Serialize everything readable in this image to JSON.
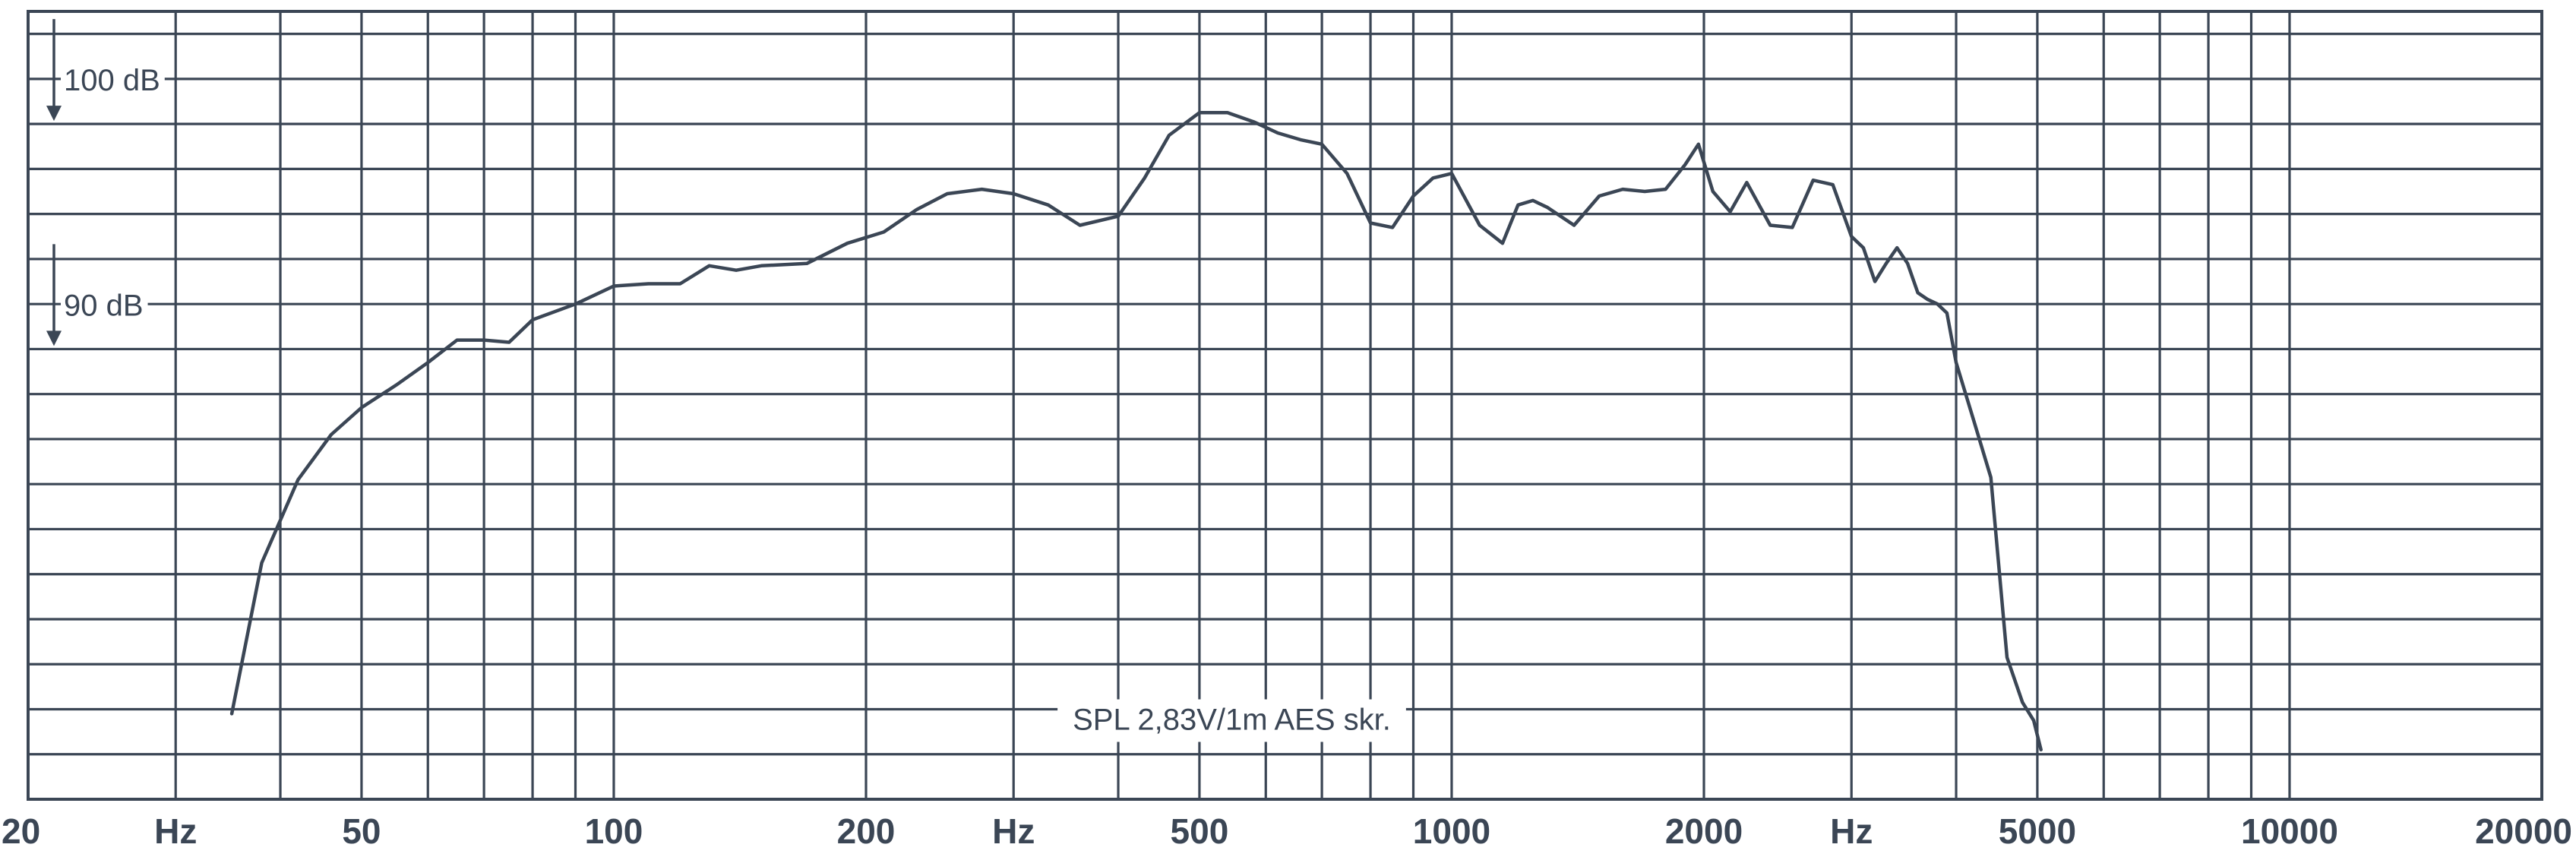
{
  "chart_data": {
    "type": "line",
    "x_scale": "log",
    "x_range": [
      20,
      20000
    ],
    "y_unit": "dB",
    "y_range": [
      70,
      105
    ],
    "y_gridlines_per_10dB": 5,
    "grid": true,
    "x_tick_labels": [
      {
        "value": 20,
        "label": "20"
      },
      {
        "value": 30,
        "label": "Hz"
      },
      {
        "value": 50,
        "label": "50"
      },
      {
        "value": 100,
        "label": "100"
      },
      {
        "value": 200,
        "label": "200"
      },
      {
        "value": 300,
        "label": "Hz"
      },
      {
        "value": 500,
        "label": "500"
      },
      {
        "value": 1000,
        "label": "1000"
      },
      {
        "value": 2000,
        "label": "2000"
      },
      {
        "value": 3000,
        "label": "Hz"
      },
      {
        "value": 5000,
        "label": "5000"
      },
      {
        "value": 10000,
        "label": "10000"
      },
      {
        "value": 20000,
        "label": "20000"
      }
    ],
    "reference_labels": [
      {
        "value": 100,
        "label": "100 dB"
      },
      {
        "value": 90,
        "label": "90 dB"
      }
    ],
    "annotation": "SPL  2,83V/1m   AES  skr.",
    "series": [
      {
        "x": [
          35,
          38,
          42,
          46,
          50,
          55,
          60,
          65,
          70,
          75,
          80,
          90,
          100,
          110,
          120,
          130,
          140,
          150,
          170,
          190,
          210,
          230,
          250,
          275,
          300,
          330,
          360,
          400,
          430,
          460,
          500,
          540,
          580,
          620,
          660,
          700,
          750,
          800,
          850,
          900,
          950,
          1000,
          1080,
          1150,
          1200,
          1250,
          1300,
          1400,
          1500,
          1600,
          1700,
          1800,
          1900,
          1970,
          2050,
          2150,
          2250,
          2400,
          2550,
          2700,
          2850,
          3000,
          3100,
          3200,
          3300,
          3400,
          3500,
          3600,
          3700,
          3800,
          3900,
          4000,
          4200,
          4400,
          4600,
          4800,
          4950,
          5050
        ],
        "y": [
          73.8,
          80.5,
          84.2,
          86.2,
          87.4,
          88.4,
          89.4,
          90.4,
          90.4,
          90.3,
          91.3,
          92.0,
          92.8,
          92.9,
          92.9,
          93.7,
          93.5,
          93.7,
          93.8,
          94.7,
          95.2,
          96.2,
          96.9,
          97.1,
          96.9,
          96.4,
          95.5,
          95.9,
          97.6,
          99.5,
          100.5,
          100.5,
          100.1,
          99.6,
          99.3,
          99.1,
          97.8,
          95.6,
          95.4,
          96.8,
          97.6,
          97.8,
          95.5,
          94.7,
          96.4,
          96.6,
          96.3,
          95.5,
          96.8,
          97.1,
          97.0,
          97.1,
          98.2,
          99.1,
          97.0,
          96.1,
          97.4,
          95.5,
          95.4,
          97.5,
          97.3,
          95.0,
          94.5,
          93.0,
          93.8,
          94.5,
          93.8,
          92.5,
          92.2,
          92.0,
          91.6,
          89.4,
          86.8,
          84.3,
          76.3,
          74.3,
          73.5,
          72.2
        ]
      }
    ]
  }
}
